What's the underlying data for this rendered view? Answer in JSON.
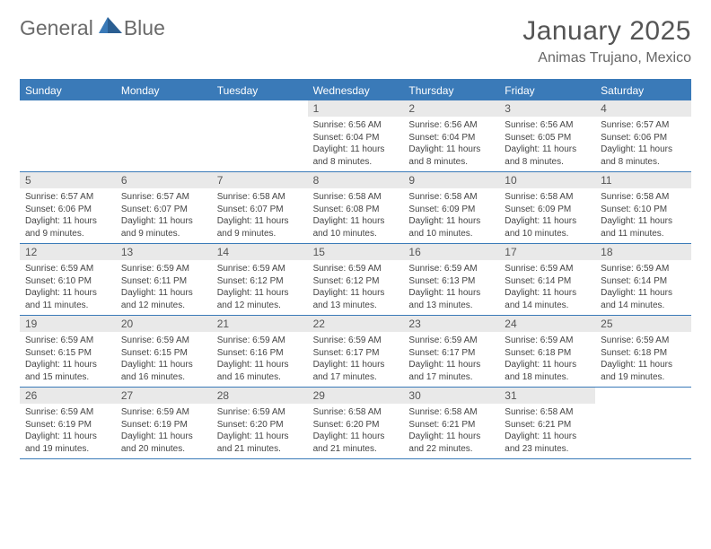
{
  "brand": {
    "text1": "General",
    "text2": "Blue"
  },
  "title": "January 2025",
  "location": "Animas Trujano, Mexico",
  "colors": {
    "accent": "#3a7ab8",
    "header_text": "#ffffff",
    "date_bg": "#e9e9e9",
    "body_text": "#444444",
    "title_text": "#555555"
  },
  "day_headers": [
    "Sunday",
    "Monday",
    "Tuesday",
    "Wednesday",
    "Thursday",
    "Friday",
    "Saturday"
  ],
  "labels": {
    "sunrise": "Sunrise:",
    "sunset": "Sunset:",
    "daylight": "Daylight:"
  },
  "weeks": [
    [
      {
        "date": "",
        "empty": true
      },
      {
        "date": "",
        "empty": true
      },
      {
        "date": "",
        "empty": true
      },
      {
        "date": "1",
        "sunrise": "6:56 AM",
        "sunset": "6:04 PM",
        "daylight": "11 hours and 8 minutes."
      },
      {
        "date": "2",
        "sunrise": "6:56 AM",
        "sunset": "6:04 PM",
        "daylight": "11 hours and 8 minutes."
      },
      {
        "date": "3",
        "sunrise": "6:56 AM",
        "sunset": "6:05 PM",
        "daylight": "11 hours and 8 minutes."
      },
      {
        "date": "4",
        "sunrise": "6:57 AM",
        "sunset": "6:06 PM",
        "daylight": "11 hours and 8 minutes."
      }
    ],
    [
      {
        "date": "5",
        "sunrise": "6:57 AM",
        "sunset": "6:06 PM",
        "daylight": "11 hours and 9 minutes."
      },
      {
        "date": "6",
        "sunrise": "6:57 AM",
        "sunset": "6:07 PM",
        "daylight": "11 hours and 9 minutes."
      },
      {
        "date": "7",
        "sunrise": "6:58 AM",
        "sunset": "6:07 PM",
        "daylight": "11 hours and 9 minutes."
      },
      {
        "date": "8",
        "sunrise": "6:58 AM",
        "sunset": "6:08 PM",
        "daylight": "11 hours and 10 minutes."
      },
      {
        "date": "9",
        "sunrise": "6:58 AM",
        "sunset": "6:09 PM",
        "daylight": "11 hours and 10 minutes."
      },
      {
        "date": "10",
        "sunrise": "6:58 AM",
        "sunset": "6:09 PM",
        "daylight": "11 hours and 10 minutes."
      },
      {
        "date": "11",
        "sunrise": "6:58 AM",
        "sunset": "6:10 PM",
        "daylight": "11 hours and 11 minutes."
      }
    ],
    [
      {
        "date": "12",
        "sunrise": "6:59 AM",
        "sunset": "6:10 PM",
        "daylight": "11 hours and 11 minutes."
      },
      {
        "date": "13",
        "sunrise": "6:59 AM",
        "sunset": "6:11 PM",
        "daylight": "11 hours and 12 minutes."
      },
      {
        "date": "14",
        "sunrise": "6:59 AM",
        "sunset": "6:12 PM",
        "daylight": "11 hours and 12 minutes."
      },
      {
        "date": "15",
        "sunrise": "6:59 AM",
        "sunset": "6:12 PM",
        "daylight": "11 hours and 13 minutes."
      },
      {
        "date": "16",
        "sunrise": "6:59 AM",
        "sunset": "6:13 PM",
        "daylight": "11 hours and 13 minutes."
      },
      {
        "date": "17",
        "sunrise": "6:59 AM",
        "sunset": "6:14 PM",
        "daylight": "11 hours and 14 minutes."
      },
      {
        "date": "18",
        "sunrise": "6:59 AM",
        "sunset": "6:14 PM",
        "daylight": "11 hours and 14 minutes."
      }
    ],
    [
      {
        "date": "19",
        "sunrise": "6:59 AM",
        "sunset": "6:15 PM",
        "daylight": "11 hours and 15 minutes."
      },
      {
        "date": "20",
        "sunrise": "6:59 AM",
        "sunset": "6:15 PM",
        "daylight": "11 hours and 16 minutes."
      },
      {
        "date": "21",
        "sunrise": "6:59 AM",
        "sunset": "6:16 PM",
        "daylight": "11 hours and 16 minutes."
      },
      {
        "date": "22",
        "sunrise": "6:59 AM",
        "sunset": "6:17 PM",
        "daylight": "11 hours and 17 minutes."
      },
      {
        "date": "23",
        "sunrise": "6:59 AM",
        "sunset": "6:17 PM",
        "daylight": "11 hours and 17 minutes."
      },
      {
        "date": "24",
        "sunrise": "6:59 AM",
        "sunset": "6:18 PM",
        "daylight": "11 hours and 18 minutes."
      },
      {
        "date": "25",
        "sunrise": "6:59 AM",
        "sunset": "6:18 PM",
        "daylight": "11 hours and 19 minutes."
      }
    ],
    [
      {
        "date": "26",
        "sunrise": "6:59 AM",
        "sunset": "6:19 PM",
        "daylight": "11 hours and 19 minutes."
      },
      {
        "date": "27",
        "sunrise": "6:59 AM",
        "sunset": "6:19 PM",
        "daylight": "11 hours and 20 minutes."
      },
      {
        "date": "28",
        "sunrise": "6:59 AM",
        "sunset": "6:20 PM",
        "daylight": "11 hours and 21 minutes."
      },
      {
        "date": "29",
        "sunrise": "6:58 AM",
        "sunset": "6:20 PM",
        "daylight": "11 hours and 21 minutes."
      },
      {
        "date": "30",
        "sunrise": "6:58 AM",
        "sunset": "6:21 PM",
        "daylight": "11 hours and 22 minutes."
      },
      {
        "date": "31",
        "sunrise": "6:58 AM",
        "sunset": "6:21 PM",
        "daylight": "11 hours and 23 minutes."
      },
      {
        "date": "",
        "empty": true
      }
    ]
  ]
}
